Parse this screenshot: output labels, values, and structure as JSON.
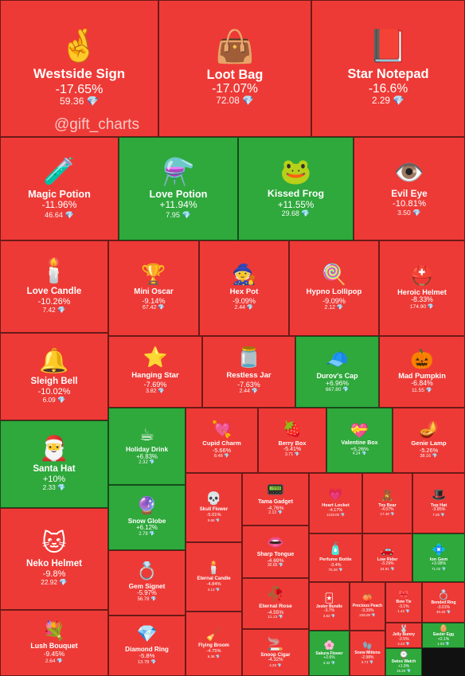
{
  "watermark": "@gift_charts",
  "gem_glyph": "💎",
  "colors": {
    "negative": "#ee3a36",
    "positive": "#2fa83c"
  },
  "chart_data": {
    "type": "treemap",
    "items": [
      {
        "name": "Westside Sign",
        "change": "-17.65%",
        "price": "59.36",
        "icon": "🤞"
      },
      {
        "name": "Loot Bag",
        "change": "-17.07%",
        "price": "72.08",
        "icon": "👜"
      },
      {
        "name": "Star Notepad",
        "change": "-16.6%",
        "price": "2.29",
        "icon": "📕"
      },
      {
        "name": "Magic Potion",
        "change": "-11.96%",
        "price": "46.64",
        "icon": "🧪"
      },
      {
        "name": "Love Potion",
        "change": "+11.94%",
        "price": "7.95",
        "icon": "⚗️"
      },
      {
        "name": "Kissed Frog",
        "change": "+11.55%",
        "price": "29.68",
        "icon": "🐸"
      },
      {
        "name": "Evil Eye",
        "change": "-10.81%",
        "price": "3.50",
        "icon": "👁️"
      },
      {
        "name": "Love Candle",
        "change": "-10.26%",
        "price": "7.42",
        "icon": "🕯️"
      },
      {
        "name": "Mini Oscar",
        "change": "-9.14%",
        "price": "67.42",
        "icon": "🏆"
      },
      {
        "name": "Hex Pot",
        "change": "-9.09%",
        "price": "2.44",
        "icon": "🧙"
      },
      {
        "name": "Hypno Lollipop",
        "change": "-9.09%",
        "price": "2.12",
        "icon": "🍭"
      },
      {
        "name": "Heroic Helmet",
        "change": "-8.33%",
        "price": "174.90",
        "icon": "⛑️"
      },
      {
        "name": "Sleigh Bell",
        "change": "-10.02%",
        "price": "6.09",
        "icon": "🔔"
      },
      {
        "name": "Hanging Star",
        "change": "-7.69%",
        "price": "3.82",
        "icon": "⭐"
      },
      {
        "name": "Restless Jar",
        "change": "-7.63%",
        "price": "2.44",
        "icon": "🫙"
      },
      {
        "name": "Durov's Cap",
        "change": "+6.96%",
        "price": "667.80",
        "icon": "🧢"
      },
      {
        "name": "Mad Pumpkin",
        "change": "-6.84%",
        "price": "11.55",
        "icon": "🎃"
      },
      {
        "name": "Santa Hat",
        "change": "+10%",
        "price": "2.33",
        "icon": "🎅"
      },
      {
        "name": "Holiday Drink",
        "change": "+6.83%",
        "price": "2.32",
        "icon": "☕"
      },
      {
        "name": "Cupid Charm",
        "change": "-5.66%",
        "price": "8.48",
        "icon": "💘"
      },
      {
        "name": "Berry Box",
        "change": "-5.41%",
        "price": "3.71",
        "icon": "🍓"
      },
      {
        "name": "Valentine Box",
        "change": "+5.26%",
        "price": "4.24",
        "icon": "💝"
      },
      {
        "name": "Genie Lamp",
        "change": "-5.26%",
        "price": "38.16",
        "icon": "🪔"
      },
      {
        "name": "Snow Globe",
        "change": "+6.12%",
        "price": "2.78",
        "icon": "🔮"
      },
      {
        "name": "Skull Flower",
        "change": "-5.01%",
        "price": "5.65",
        "icon": "💀"
      },
      {
        "name": "Tama Gadget",
        "change": "-4.76%",
        "price": "2.13",
        "icon": "📟"
      },
      {
        "name": "Heart Locket",
        "change": "-4.17%",
        "price": "1219.00",
        "icon": "💗"
      },
      {
        "name": "Toy Bear",
        "change": "-4.07%",
        "price": "17.49",
        "icon": "🧸"
      },
      {
        "name": "Top Hat",
        "change": "-3.85%",
        "price": "7.25",
        "icon": "🎩"
      },
      {
        "name": "Neko Helmet",
        "change": "-9.8%",
        "price": "22.92",
        "icon": "🐱"
      },
      {
        "name": "Sharp Tongue",
        "change": "-4.69%",
        "price": "30.65",
        "icon": "👄"
      },
      {
        "name": "Perfume Bottle",
        "change": "-3.4%",
        "price": "75.28",
        "icon": "🧴"
      },
      {
        "name": "Low Rider",
        "change": "-3.29%",
        "price": "24.91",
        "icon": "🚗"
      },
      {
        "name": "Ion Gem",
        "change": "+3.08%",
        "price": "71.02",
        "icon": "💠"
      },
      {
        "name": "Gem Signet",
        "change": "-5.97%",
        "price": "56.78",
        "icon": "💍"
      },
      {
        "name": "Eternal Candle",
        "change": "-4.84%",
        "price": "3.13",
        "icon": "🕯️"
      },
      {
        "name": "Eternal Rose",
        "change": "-4.55%",
        "price": "11.13",
        "icon": "🥀"
      },
      {
        "name": "Jester Bundle",
        "change": "-3.7%",
        "price": "3.62",
        "icon": "🃏"
      },
      {
        "name": "Precious Peach",
        "change": "-3.39%",
        "price": "228.00",
        "icon": "🍑"
      },
      {
        "name": "Bow Tie",
        "change": "-3.1%",
        "price": "1.42",
        "icon": "🎀"
      },
      {
        "name": "Bonded Ring",
        "change": "-3.01%",
        "price": "40.40",
        "icon": "💍"
      },
      {
        "name": "Lush Bouquet",
        "change": "-9.45%",
        "price": "2.64",
        "icon": "💐"
      },
      {
        "name": "Diamond Ring",
        "change": "-5.8%",
        "price": "13.78",
        "icon": "💎"
      },
      {
        "name": "Flying Broom",
        "change": "-4.75%",
        "price": "6.36",
        "icon": "🧹"
      },
      {
        "name": "Snoop Cigar",
        "change": "-4.32%",
        "price": "4.33",
        "icon": "🚬"
      },
      {
        "name": "Sakura Flower",
        "change": "+2.6%",
        "price": "3.32",
        "icon": "🌸"
      },
      {
        "name": "Snow Mittens",
        "change": "-2.98%",
        "price": "3.71",
        "icon": "🧤"
      },
      {
        "name": "Jelly Bunny",
        "change": "-2.5%",
        "price": "4.23",
        "icon": "🐰"
      },
      {
        "name": "Easter Egg",
        "change": "+2.1%",
        "price": "1.93",
        "icon": "🥚"
      },
      {
        "name": "Swiss Watch",
        "change": "+1.9%",
        "price": "15.20",
        "icon": "⌚"
      }
    ]
  }
}
